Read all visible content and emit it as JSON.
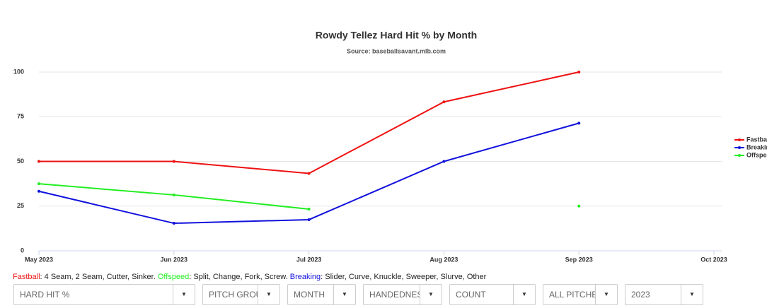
{
  "chart_data": {
    "type": "line",
    "title": "Rowdy Tellez Hard Hit % by Month",
    "subtitle": "Source: baseballsavant.mlb.com",
    "categories": [
      "May 2023",
      "Jun 2023",
      "Jul 2023",
      "Aug 2023",
      "Sep 2023",
      "Oct 2023"
    ],
    "series": [
      {
        "name": "Fastball",
        "color": "#ee1111",
        "values": [
          50,
          50,
          43.3,
          83.3,
          100,
          null
        ]
      },
      {
        "name": "Breaking",
        "color": "#1111dd",
        "values": [
          33.3,
          15.4,
          17.4,
          50,
          71.4,
          null
        ]
      },
      {
        "name": "Offspeed",
        "color": "#22ee22",
        "values": [
          37.5,
          31.25,
          23.3,
          null,
          25,
          null
        ]
      }
    ],
    "ylim": [
      0,
      100
    ],
    "yticks": [
      0,
      25,
      50,
      75,
      100
    ],
    "grid": true,
    "legend": "right"
  },
  "note": [
    {
      "label": "Fastball",
      "color": "#ee1111",
      "text": ": 4 Seam, 2 Seam, Cutter, Sinker."
    },
    {
      "label": "Offspeed",
      "color": "#22ee22",
      "text": ": Split, Change, Fork, Screw."
    },
    {
      "label": "Breaking",
      "color": "#1111dd",
      "text": ": Slider, Curve, Knuckle, Sweeper, Slurve, Other"
    }
  ],
  "controls": [
    "HARD HIT %",
    "PITCH GROUP",
    "MONTH",
    "HANDEDNESS",
    "COUNT",
    "ALL PITCHES",
    "2023"
  ]
}
